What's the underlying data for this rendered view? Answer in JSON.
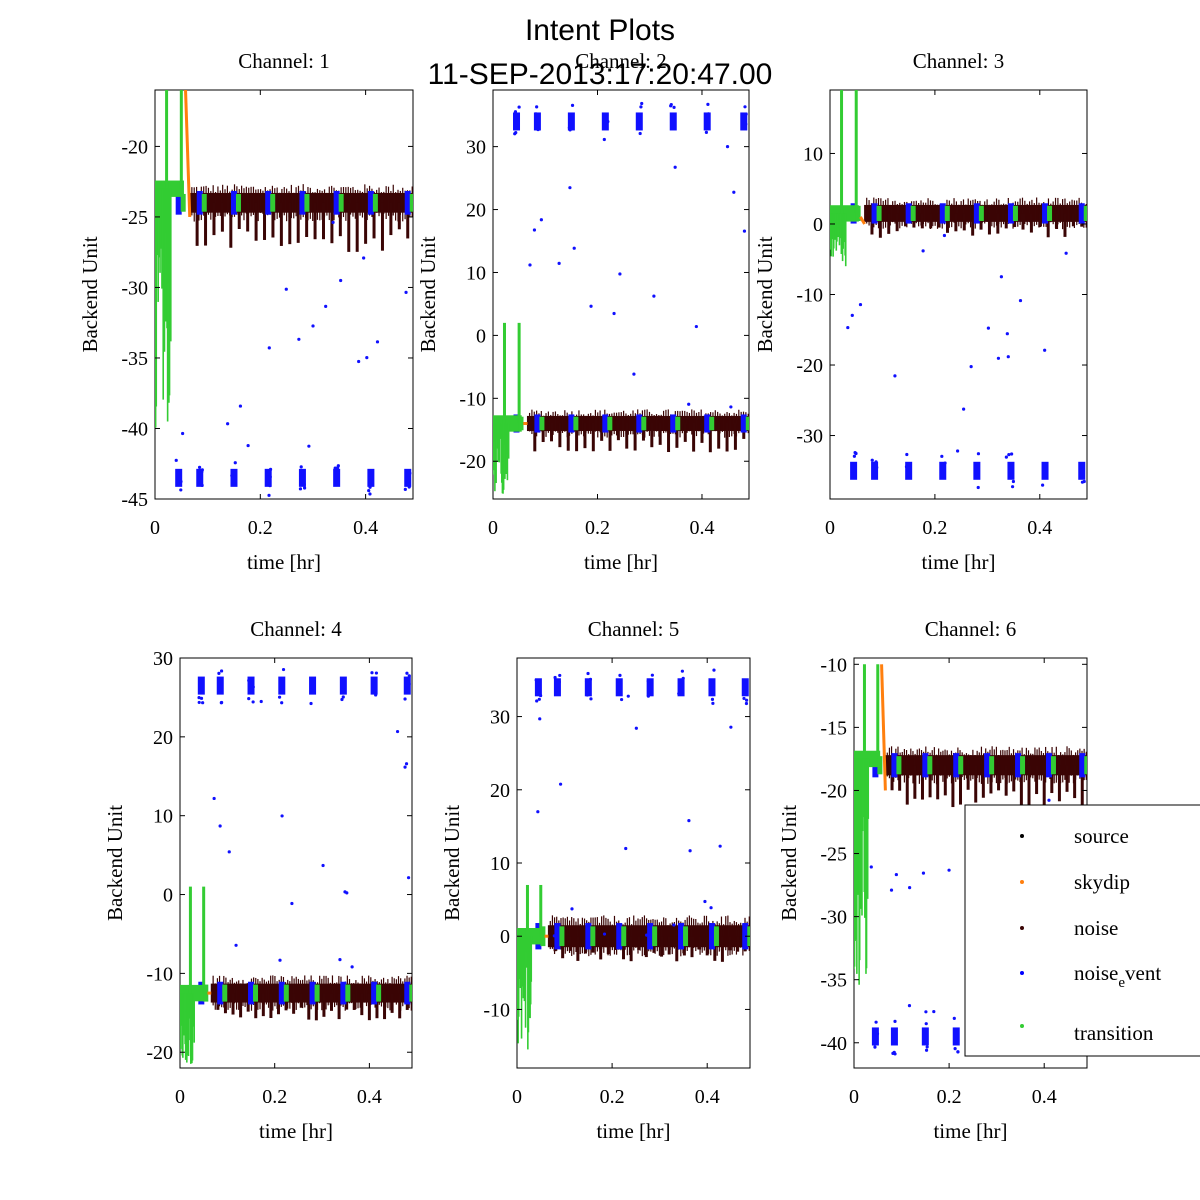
{
  "figure": {
    "title": "Intent Plots",
    "subtitle": "11-SEP-2013:17:20:47.00"
  },
  "chart_data": [
    {
      "type": "scatter",
      "title": "Channel: 1",
      "xlabel": "time [hr]",
      "ylabel": "Backend Unit",
      "xlim": [
        0,
        0.49
      ],
      "ylim": [
        -45,
        -16
      ],
      "xticks": [
        0,
        0.2,
        0.4
      ],
      "xtick_labels": [
        "0",
        "0.2",
        "0.4"
      ],
      "yticks": [
        -20,
        -25,
        -30,
        -35,
        -40,
        -45
      ],
      "ytick_labels": [
        "-20",
        "-25",
        "-30",
        "-35",
        "-40",
        "-45"
      ],
      "series": [
        {
          "name": "noise",
          "base": -24,
          "spread": 0.7,
          "dips": -3
        },
        {
          "name": "noise_event",
          "high": null,
          "low": -43.5
        },
        {
          "name": "transition",
          "base": -23,
          "spike_min": -40,
          "spike_max": -16
        },
        {
          "name": "skydip",
          "from": -16,
          "to": -25
        }
      ]
    },
    {
      "type": "scatter",
      "title": "Channel: 2",
      "xlabel": "time [hr]",
      "ylabel": "Backend Unit",
      "xlim": [
        0,
        0.49
      ],
      "ylim": [
        -26,
        39
      ],
      "xticks": [
        0,
        0.2,
        0.4
      ],
      "xtick_labels": [
        "0",
        "0.2",
        "0.4"
      ],
      "yticks": [
        30,
        20,
        10,
        0,
        -10,
        -20
      ],
      "ytick_labels": [
        "30",
        "20",
        "10",
        "0",
        "-10",
        "-20"
      ],
      "series": [
        {
          "name": "noise",
          "base": -14,
          "spread": 1.2,
          "dips": -4
        },
        {
          "name": "noise_event",
          "high": 34,
          "low": null
        },
        {
          "name": "transition",
          "base": -14,
          "spike_min": -26,
          "spike_max": 2
        },
        {
          "name": "skydip",
          "from": -14,
          "to": -14
        }
      ]
    },
    {
      "type": "scatter",
      "title": "Channel: 3",
      "xlabel": "time [hr]",
      "ylabel": "Backend Unit",
      "xlim": [
        0,
        0.49
      ],
      "ylim": [
        -39,
        19
      ],
      "xticks": [
        0,
        0.2,
        0.4
      ],
      "xtick_labels": [
        "0",
        "0.2",
        "0.4"
      ],
      "yticks": [
        10,
        0,
        -10,
        -20,
        -30
      ],
      "ytick_labels": [
        "10",
        "0",
        "-10",
        "-20",
        "-30"
      ],
      "series": [
        {
          "name": "noise",
          "base": 1.5,
          "spread": 1.2,
          "dips": -3
        },
        {
          "name": "noise_event",
          "high": null,
          "low": -35
        },
        {
          "name": "transition",
          "base": 1.5,
          "spike_min": -6,
          "spike_max": 19
        },
        {
          "name": "skydip",
          "from": 1,
          "to": 0
        }
      ]
    },
    {
      "type": "scatter",
      "title": "Channel: 4",
      "xlabel": "time [hr]",
      "ylabel": "Backend Unit",
      "xlim": [
        0,
        0.49
      ],
      "ylim": [
        -22,
        30
      ],
      "xticks": [
        0,
        0.2,
        0.4
      ],
      "xtick_labels": [
        "0",
        "0.2",
        "0.4"
      ],
      "yticks": [
        30,
        20,
        10,
        0,
        -10,
        -20
      ],
      "ytick_labels": [
        "30",
        "20",
        "10",
        "0",
        "-10",
        "-20"
      ],
      "series": [
        {
          "name": "noise",
          "base": -12.5,
          "spread": 1.2,
          "dips": -3
        },
        {
          "name": "noise_event",
          "high": 26.5,
          "low": null
        },
        {
          "name": "transition",
          "base": -12.5,
          "spike_min": -22,
          "spike_max": 1
        },
        {
          "name": "skydip",
          "from": -12.5,
          "to": -12.5
        }
      ]
    },
    {
      "type": "scatter",
      "title": "Channel: 5",
      "xlabel": "time [hr]",
      "ylabel": "Backend Unit",
      "xlim": [
        0,
        0.49
      ],
      "ylim": [
        -18,
        38
      ],
      "xticks": [
        0,
        0.2,
        0.4
      ],
      "xtick_labels": [
        "0",
        "0.2",
        "0.4"
      ],
      "yticks": [
        30,
        20,
        10,
        0,
        -10
      ],
      "ytick_labels": [
        "30",
        "20",
        "10",
        "0",
        "-10"
      ],
      "series": [
        {
          "name": "noise",
          "base": 0,
          "spread": 1.5,
          "dips": -3
        },
        {
          "name": "noise_event",
          "high": 34,
          "low": null
        },
        {
          "name": "transition",
          "base": 0,
          "spike_min": -17,
          "spike_max": 7
        },
        {
          "name": "skydip",
          "from": 0,
          "to": 0
        }
      ]
    },
    {
      "type": "scatter",
      "title": "Channel: 6",
      "xlabel": "time [hr]",
      "ylabel": "Backend Unit",
      "xlim": [
        0,
        0.49
      ],
      "ylim": [
        -42,
        -9.5
      ],
      "xticks": [
        0,
        0.2,
        0.4
      ],
      "xtick_labels": [
        "0",
        "0.2",
        "0.4"
      ],
      "yticks": [
        -10,
        -15,
        -20,
        -25,
        -30,
        -35,
        -40
      ],
      "ytick_labels": [
        "-10",
        "-15",
        "-20",
        "-25",
        "-30",
        "-35",
        "-40"
      ],
      "series": [
        {
          "name": "noise",
          "base": -18,
          "spread": 0.8,
          "dips": -3
        },
        {
          "name": "noise_event",
          "high": null,
          "low": -39.5
        },
        {
          "name": "transition",
          "base": -17.5,
          "spike_min": -36,
          "spike_max": -10
        },
        {
          "name": "skydip",
          "from": -10,
          "to": -20
        }
      ]
    }
  ],
  "legend": {
    "position": "bottom-right, overlapping Channel 6",
    "entries": [
      {
        "label": "source",
        "color": "#000000"
      },
      {
        "label": "skydip",
        "color": "#ff7f0e"
      },
      {
        "label": "noise",
        "color": "#3a0505"
      },
      {
        "label": "noise",
        "sub": "e",
        "label_rest": "vent",
        "color": "#0000ff"
      },
      {
        "label": "transition",
        "color": "#33cc33"
      }
    ]
  },
  "colors": {
    "source": "#000000",
    "skydip": "#ff7f0e",
    "noise": "#3a0505",
    "noise_event": "#1010ff",
    "transition": "#33cc33"
  }
}
